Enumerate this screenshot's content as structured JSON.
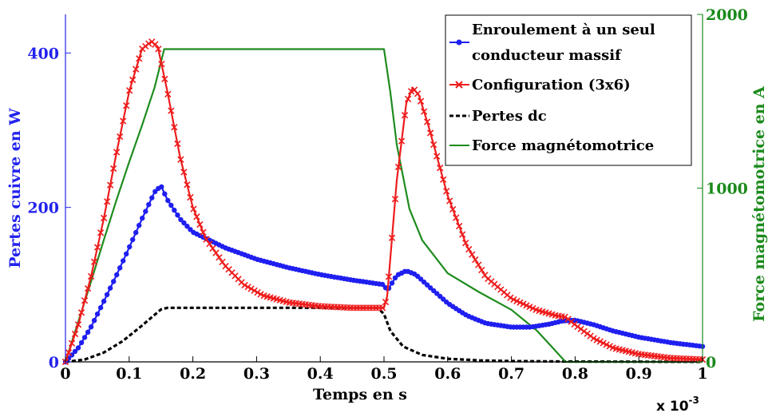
{
  "chart_data": {
    "type": "line",
    "xlabel": "Temps en s",
    "x_scale_note": "x 10",
    "x_scale_exp": "-3",
    "ylabel_left": "Pertes cuivre en W",
    "ylabel_right": "Force magnétomotrice en A",
    "xlim": [
      0,
      1
    ],
    "ylim_left": [
      0,
      450
    ],
    "ylim_right": [
      0,
      2000
    ],
    "x_ticks": [
      "0",
      "0.1",
      "0.2",
      "0.3",
      "0.4",
      "0.5",
      "0.6",
      "0.7",
      "0.8",
      "0.9",
      "1"
    ],
    "y_ticks_left": [
      "0",
      "200",
      "400"
    ],
    "y_ticks_right": [
      "0",
      "1000",
      "2000"
    ],
    "grid": false,
    "legend_position": "top-right",
    "legend_lines": [
      [
        "Enroulement à un seul",
        "conducteur massif"
      ],
      [
        "Configuration (3x6)"
      ],
      [
        "Pertes dc"
      ],
      [
        "Force magnétomotrice"
      ]
    ],
    "colors": {
      "left_axis": "#2323ee",
      "right_axis": "#1b8a1b",
      "blue": "#1f1ff0",
      "red": "#ee1c1c",
      "black": "#000000",
      "green": "#1e8c1e"
    },
    "series": [
      {
        "name": "Enroulement à un seul conducteur massif",
        "axis": "left",
        "marker": "dot",
        "style": "solid",
        "color": "#1f1ff0",
        "points": [
          [
            0,
            0
          ],
          [
            0.02,
            18
          ],
          [
            0.04,
            45
          ],
          [
            0.06,
            78
          ],
          [
            0.08,
            112
          ],
          [
            0.1,
            148
          ],
          [
            0.12,
            185
          ],
          [
            0.14,
            220
          ],
          [
            0.15,
            228
          ],
          [
            0.16,
            210
          ],
          [
            0.18,
            185
          ],
          [
            0.2,
            168
          ],
          [
            0.25,
            148
          ],
          [
            0.3,
            133
          ],
          [
            0.35,
            122
          ],
          [
            0.4,
            113
          ],
          [
            0.45,
            106
          ],
          [
            0.5,
            100
          ],
          [
            0.505,
            92
          ],
          [
            0.52,
            112
          ],
          [
            0.535,
            118
          ],
          [
            0.55,
            113
          ],
          [
            0.57,
            98
          ],
          [
            0.6,
            76
          ],
          [
            0.63,
            60
          ],
          [
            0.66,
            50
          ],
          [
            0.7,
            45
          ],
          [
            0.73,
            45
          ],
          [
            0.76,
            49
          ],
          [
            0.78,
            53
          ],
          [
            0.8,
            54
          ],
          [
            0.83,
            48
          ],
          [
            0.86,
            40
          ],
          [
            0.9,
            32
          ],
          [
            0.95,
            25
          ],
          [
            1.0,
            20
          ]
        ]
      },
      {
        "name": "Configuration (3x6)",
        "axis": "left",
        "marker": "x",
        "style": "solid",
        "color": "#ee1c1c",
        "points": [
          [
            0,
            0
          ],
          [
            0.02,
            48
          ],
          [
            0.04,
            110
          ],
          [
            0.06,
            185
          ],
          [
            0.08,
            270
          ],
          [
            0.1,
            350
          ],
          [
            0.12,
            405
          ],
          [
            0.135,
            415
          ],
          [
            0.145,
            408
          ],
          [
            0.16,
            350
          ],
          [
            0.18,
            265
          ],
          [
            0.2,
            200
          ],
          [
            0.22,
            160
          ],
          [
            0.25,
            125
          ],
          [
            0.28,
            100
          ],
          [
            0.31,
            86
          ],
          [
            0.35,
            77
          ],
          [
            0.4,
            72
          ],
          [
            0.45,
            70
          ],
          [
            0.5,
            70
          ],
          [
            0.505,
            85
          ],
          [
            0.52,
            235
          ],
          [
            0.535,
            335
          ],
          [
            0.545,
            355
          ],
          [
            0.555,
            345
          ],
          [
            0.57,
            305
          ],
          [
            0.6,
            215
          ],
          [
            0.63,
            150
          ],
          [
            0.66,
            110
          ],
          [
            0.7,
            82
          ],
          [
            0.74,
            67
          ],
          [
            0.77,
            60
          ],
          [
            0.785,
            58
          ],
          [
            0.8,
            48
          ],
          [
            0.83,
            30
          ],
          [
            0.86,
            18
          ],
          [
            0.9,
            10
          ],
          [
            0.95,
            5
          ],
          [
            1.0,
            3
          ]
        ]
      },
      {
        "name": "Pertes dc",
        "axis": "left",
        "marker": "none",
        "style": "dashed",
        "color": "#000000",
        "points": [
          [
            0,
            0
          ],
          [
            0.03,
            3
          ],
          [
            0.06,
            12
          ],
          [
            0.09,
            27
          ],
          [
            0.12,
            47
          ],
          [
            0.15,
            68
          ],
          [
            0.16,
            70
          ],
          [
            0.3,
            70
          ],
          [
            0.45,
            70
          ],
          [
            0.49,
            70
          ],
          [
            0.5,
            62
          ],
          [
            0.51,
            40
          ],
          [
            0.53,
            20
          ],
          [
            0.56,
            9
          ],
          [
            0.6,
            4
          ],
          [
            0.65,
            2
          ],
          [
            0.7,
            1
          ],
          [
            0.78,
            0.5
          ],
          [
            1.0,
            0
          ]
        ]
      },
      {
        "name": "Force magnétomotrice",
        "axis": "right",
        "marker": "none",
        "style": "solid",
        "color": "#1e8c1e",
        "points": [
          [
            0,
            0
          ],
          [
            0.02,
            230
          ],
          [
            0.04,
            460
          ],
          [
            0.06,
            700
          ],
          [
            0.08,
            930
          ],
          [
            0.1,
            1150
          ],
          [
            0.12,
            1360
          ],
          [
            0.14,
            1580
          ],
          [
            0.155,
            1800
          ],
          [
            0.5,
            1800
          ],
          [
            0.51,
            1550
          ],
          [
            0.52,
            1250
          ],
          [
            0.54,
            880
          ],
          [
            0.56,
            700
          ],
          [
            0.6,
            510
          ],
          [
            0.65,
            400
          ],
          [
            0.7,
            300
          ],
          [
            0.74,
            180
          ],
          [
            0.76,
            100
          ],
          [
            0.78,
            20
          ],
          [
            0.785,
            0
          ],
          [
            1.0,
            0
          ]
        ]
      }
    ]
  }
}
